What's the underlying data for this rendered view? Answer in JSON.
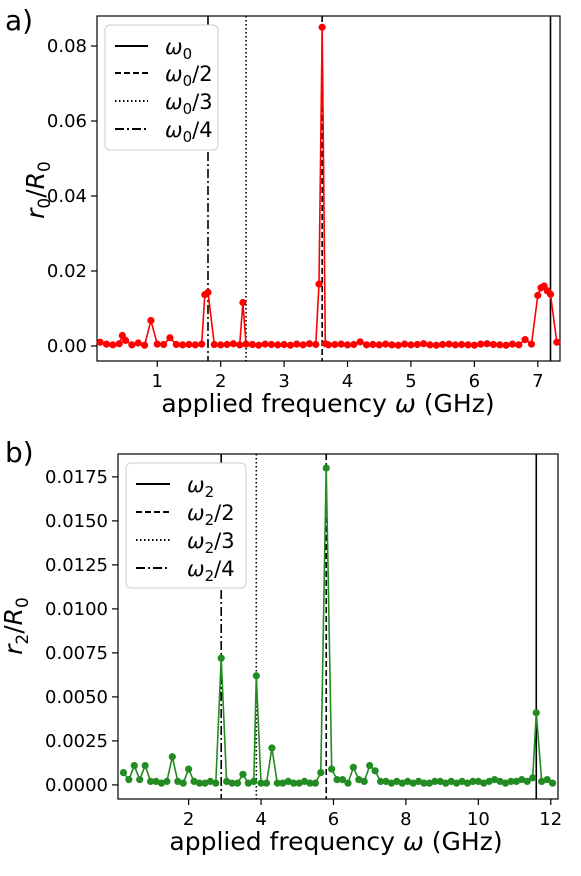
{
  "chart_data": [
    {
      "panel_label": "a)",
      "type": "line",
      "xlabel": "applied frequency ω (GHz)",
      "ylabel": "r₀/R₀",
      "xlim": [
        0.05,
        7.35
      ],
      "ylim": [
        -0.004,
        0.088
      ],
      "xticks": [
        1,
        2,
        3,
        4,
        5,
        6,
        7
      ],
      "yticks": [
        0.0,
        0.02,
        0.04,
        0.06,
        0.08
      ],
      "ytick_labels": [
        "0.00",
        "0.02",
        "0.04",
        "0.06",
        "0.08"
      ],
      "legend_position": "top-left",
      "vlines": [
        {
          "x": 7.2,
          "style": "solid",
          "label": "ω0"
        },
        {
          "x": 3.6,
          "style": "dashed",
          "label": "ω0/2"
        },
        {
          "x": 2.4,
          "style": "dotted",
          "label": "ω0/3"
        },
        {
          "x": 1.8,
          "style": "dashdot",
          "label": "ω0/4"
        }
      ],
      "series_color": "#ff0000",
      "x": [
        0.1,
        0.2,
        0.3,
        0.4,
        0.45,
        0.5,
        0.6,
        0.7,
        0.8,
        0.9,
        1.0,
        1.1,
        1.2,
        1.3,
        1.4,
        1.5,
        1.6,
        1.7,
        1.75,
        1.8,
        1.9,
        2.0,
        2.1,
        2.2,
        2.3,
        2.35,
        2.4,
        2.5,
        2.6,
        2.7,
        2.8,
        2.9,
        3.0,
        3.1,
        3.2,
        3.3,
        3.4,
        3.5,
        3.55,
        3.6,
        3.65,
        3.7,
        3.8,
        3.9,
        4.0,
        4.1,
        4.2,
        4.3,
        4.4,
        4.5,
        4.6,
        4.7,
        4.8,
        4.9,
        5.0,
        5.1,
        5.2,
        5.3,
        5.4,
        5.5,
        5.6,
        5.7,
        5.8,
        5.9,
        6.0,
        6.1,
        6.2,
        6.3,
        6.4,
        6.5,
        6.6,
        6.7,
        6.8,
        6.9,
        7.0,
        7.05,
        7.1,
        7.15,
        7.2,
        7.3
      ],
      "values": [
        0.001,
        0.0005,
        0.0003,
        0.0006,
        0.0028,
        0.0015,
        0.0003,
        0.0008,
        0.0002,
        0.0068,
        0.0005,
        0.0004,
        0.0022,
        0.0004,
        0.0003,
        0.0004,
        0.0003,
        0.0005,
        0.0137,
        0.0143,
        0.0004,
        0.0003,
        0.0004,
        0.0006,
        0.0003,
        0.0116,
        0.0005,
        0.0004,
        0.0002,
        0.0005,
        0.0004,
        0.0003,
        0.0004,
        0.0002,
        0.0005,
        0.0003,
        0.0006,
        0.0004,
        0.0165,
        0.085,
        0.0006,
        0.0003,
        0.0004,
        0.0005,
        0.0003,
        0.0004,
        0.0011,
        0.0003,
        0.0004,
        0.0003,
        0.0005,
        0.0003,
        0.0002,
        0.0005,
        0.0003,
        0.0004,
        0.0006,
        0.0003,
        0.0002,
        0.0004,
        0.0005,
        0.0003,
        0.0004,
        0.0003,
        0.0002,
        0.0005,
        0.0006,
        0.0004,
        0.0003,
        0.0002,
        0.0005,
        0.0003,
        0.0017,
        0.0005,
        0.0135,
        0.0155,
        0.016,
        0.0147,
        0.0138,
        0.001
      ]
    },
    {
      "panel_label": "b)",
      "type": "line",
      "xlabel": "applied frequency ω (GHz)",
      "ylabel": "r₂/R₀",
      "xlim": [
        0.05,
        12.2
      ],
      "ylim": [
        -0.0008,
        0.0188
      ],
      "xticks": [
        2,
        4,
        6,
        8,
        10,
        12
      ],
      "yticks": [
        0.0,
        0.0025,
        0.005,
        0.0075,
        0.01,
        0.0125,
        0.015,
        0.0175
      ],
      "ytick_labels": [
        "0.0000",
        "0.0025",
        "0.0050",
        "0.0075",
        "0.0100",
        "0.0125",
        "0.0150",
        "0.0175"
      ],
      "legend_position": "top-left",
      "vlines": [
        {
          "x": 11.6,
          "style": "solid",
          "label": "ω2"
        },
        {
          "x": 5.8,
          "style": "dashed",
          "label": "ω2/2"
        },
        {
          "x": 3.87,
          "style": "dotted",
          "label": "ω2/3"
        },
        {
          "x": 2.9,
          "style": "dashdot",
          "label": "ω2/4"
        }
      ],
      "series_color": "#228b22",
      "x": [
        0.2,
        0.35,
        0.5,
        0.65,
        0.8,
        0.95,
        1.1,
        1.25,
        1.4,
        1.55,
        1.7,
        1.85,
        2.0,
        2.15,
        2.3,
        2.45,
        2.6,
        2.75,
        2.9,
        3.05,
        3.2,
        3.35,
        3.5,
        3.65,
        3.8,
        3.87,
        4.0,
        4.15,
        4.3,
        4.45,
        4.6,
        4.75,
        4.9,
        5.05,
        5.2,
        5.35,
        5.5,
        5.65,
        5.8,
        5.95,
        6.1,
        6.25,
        6.4,
        6.55,
        6.7,
        6.85,
        7.0,
        7.15,
        7.3,
        7.45,
        7.6,
        7.75,
        7.9,
        8.05,
        8.2,
        8.35,
        8.5,
        8.65,
        8.8,
        8.95,
        9.1,
        9.25,
        9.4,
        9.55,
        9.7,
        9.85,
        10.0,
        10.15,
        10.3,
        10.45,
        10.6,
        10.75,
        10.9,
        11.05,
        11.2,
        11.35,
        11.5,
        11.6,
        11.75,
        11.9,
        12.05
      ],
      "values": [
        0.0007,
        0.0003,
        0.0011,
        0.0003,
        0.0011,
        0.0002,
        0.0002,
        0.0001,
        0.0002,
        0.0016,
        0.0002,
        0.0001,
        0.0009,
        0.0002,
        0.0001,
        0.0001,
        0.0002,
        0.0001,
        0.0072,
        0.0002,
        0.0001,
        0.0001,
        0.0006,
        0.0001,
        0.0002,
        0.0062,
        0.0001,
        0.0001,
        0.0021,
        0.0001,
        0.0001,
        0.0002,
        0.0001,
        0.0001,
        0.0002,
        0.0001,
        0.0001,
        0.0007,
        0.018,
        0.0009,
        0.0003,
        0.0003,
        0.0001,
        0.001,
        0.0003,
        0.0002,
        0.0011,
        0.0008,
        0.0002,
        0.0002,
        0.0001,
        0.0002,
        0.0001,
        0.0002,
        0.0001,
        0.0002,
        0.0001,
        0.0001,
        0.0002,
        0.0002,
        0.0001,
        0.0002,
        0.0001,
        0.0002,
        0.0001,
        0.0002,
        0.0002,
        0.0001,
        0.0002,
        0.0003,
        0.0002,
        0.0001,
        0.0002,
        0.0002,
        0.0003,
        0.0002,
        0.0004,
        0.0041,
        0.0002,
        0.0003,
        0.0001
      ]
    }
  ],
  "text": {
    "panel_a_label": "a)",
    "panel_b_label": "b)",
    "xlabel_a": "applied frequency ω (GHz)",
    "xlabel_b": "applied frequency ω (GHz)"
  }
}
